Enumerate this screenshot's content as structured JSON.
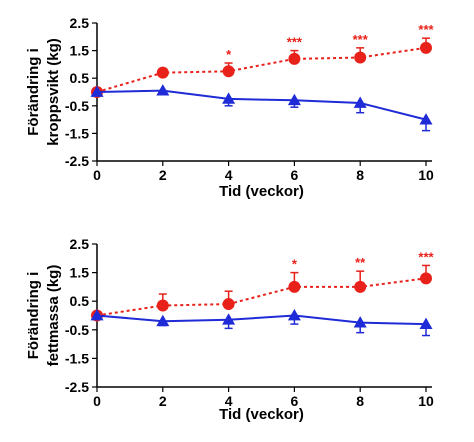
{
  "chart_data": [
    {
      "type": "line",
      "title": "",
      "xlabel": "Tid (veckor)",
      "ylabel_lines": [
        "Förändring i",
        "kroppsvikt (kg)"
      ],
      "x": [
        0,
        2,
        4,
        6,
        8,
        10
      ],
      "xlim": [
        0,
        10
      ],
      "ylim": [
        -2.5,
        2.5
      ],
      "xticks": [
        "0",
        "2",
        "4",
        "6",
        "8",
        "10"
      ],
      "yticks": [
        "2.5",
        "1.5",
        "0.5",
        "-0.5",
        "-1.5",
        "-2.5"
      ],
      "grid": false,
      "series": [
        {
          "color": "#e8211a",
          "marker": "circle",
          "line_style": "dotted",
          "values": [
            0.0,
            0.7,
            0.75,
            1.2,
            1.25,
            1.6
          ],
          "error_upper": [
            0.1,
            0.15,
            0.3,
            0.3,
            0.35,
            0.35
          ],
          "significance": [
            "",
            "",
            "*",
            "***",
            "***",
            "***"
          ]
        },
        {
          "color": "#1f2bd6",
          "marker": "triangle",
          "line_style": "solid",
          "values": [
            0.0,
            0.05,
            -0.25,
            -0.3,
            -0.4,
            -1.0
          ],
          "error_lower": [
            0.1,
            0.15,
            0.25,
            0.25,
            0.35,
            0.4
          ],
          "significance": [
            "",
            "",
            "",
            "",
            "",
            ""
          ]
        }
      ]
    },
    {
      "type": "line",
      "title": "",
      "xlabel": "Tid (veckor)",
      "ylabel_lines": [
        "Förändring i",
        "fettmassa (kg)"
      ],
      "x": [
        0,
        2,
        4,
        6,
        8,
        10
      ],
      "xlim": [
        0,
        10
      ],
      "ylim": [
        -2.5,
        2.5
      ],
      "xticks": [
        "0",
        "2",
        "4",
        "6",
        "8",
        "10"
      ],
      "yticks": [
        "2.5",
        "1.5",
        "0.5",
        "-0.5",
        "-1.5",
        "-2.5"
      ],
      "grid": false,
      "series": [
        {
          "color": "#e8211a",
          "marker": "circle",
          "line_style": "dotted",
          "values": [
            0.0,
            0.35,
            0.4,
            1.0,
            1.0,
            1.3
          ],
          "error_upper": [
            0.1,
            0.4,
            0.45,
            0.5,
            0.55,
            0.45
          ],
          "significance": [
            "",
            "",
            "",
            "*",
            "**",
            "***"
          ]
        },
        {
          "color": "#1f2bd6",
          "marker": "triangle",
          "line_style": "solid",
          "values": [
            0.0,
            -0.2,
            -0.15,
            0.0,
            -0.25,
            -0.3
          ],
          "error_lower": [
            0.1,
            0.15,
            0.3,
            0.3,
            0.35,
            0.4
          ],
          "significance": [
            "",
            "",
            "",
            "",
            "",
            ""
          ]
        }
      ]
    }
  ]
}
